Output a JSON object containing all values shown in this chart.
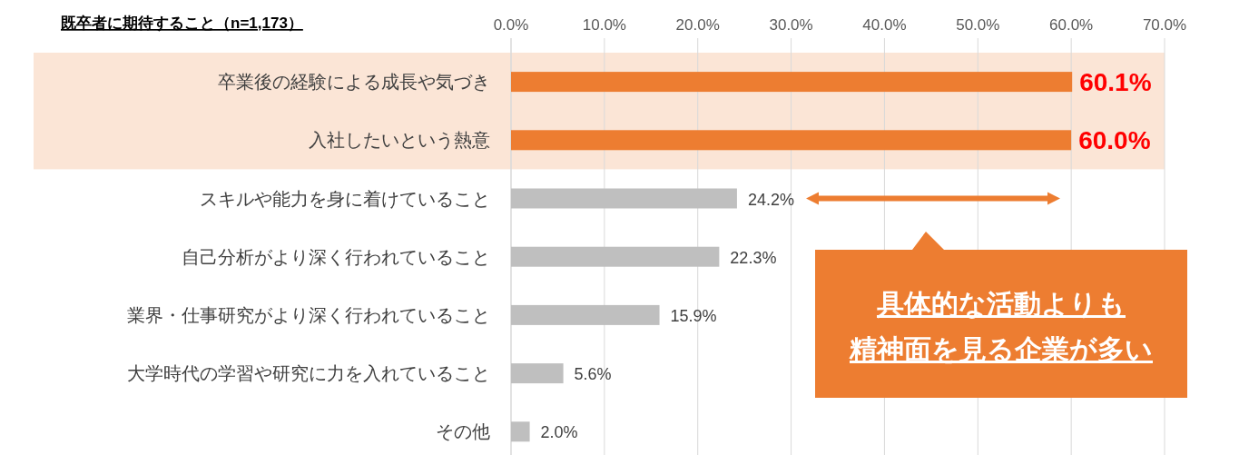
{
  "chart_data": {
    "type": "bar",
    "orientation": "horizontal",
    "title": "既卒者に期待すること（n=1,173）",
    "categories": [
      "卒業後の経験による成長や気づき",
      "入社したいという熱意",
      "スキルや能力を身に着けていること",
      "自己分析がより深く行われていること",
      "業界・仕事研究がより深く行われていること",
      "大学時代の学習や研究に力を入れていること",
      "その他"
    ],
    "values": [
      60.1,
      60.0,
      24.2,
      22.3,
      15.9,
      5.6,
      2.0
    ],
    "colors": [
      "#ed7d31",
      "#ed7d31",
      "#bfbfbf",
      "#bfbfbf",
      "#bfbfbf",
      "#bfbfbf",
      "#bfbfbf"
    ],
    "value_labels": [
      "60.1%",
      "60.0%",
      "24.2%",
      "22.3%",
      "15.9%",
      "5.6%",
      "2.0%"
    ],
    "xlim": [
      0,
      70
    ],
    "xticks": [
      {
        "value": 0,
        "label": "0.0%"
      },
      {
        "value": 10,
        "label": "10.0%"
      },
      {
        "value": 20,
        "label": "20.0%"
      },
      {
        "value": 30,
        "label": "30.0%"
      },
      {
        "value": 40,
        "label": "40.0%"
      },
      {
        "value": 50,
        "label": "50.0%"
      },
      {
        "value": 60,
        "label": "60.0%"
      },
      {
        "value": 70,
        "label": "70.0%"
      }
    ],
    "grid": "x",
    "bands": [
      {
        "axis": "y",
        "from": "卒業後の経験による成長や気づき",
        "to": "入社したいという熱意",
        "color": "#fbe5d6"
      }
    ],
    "annotations": [
      "具体的な活動よりも",
      "精神面を見る企業が多い"
    ]
  }
}
